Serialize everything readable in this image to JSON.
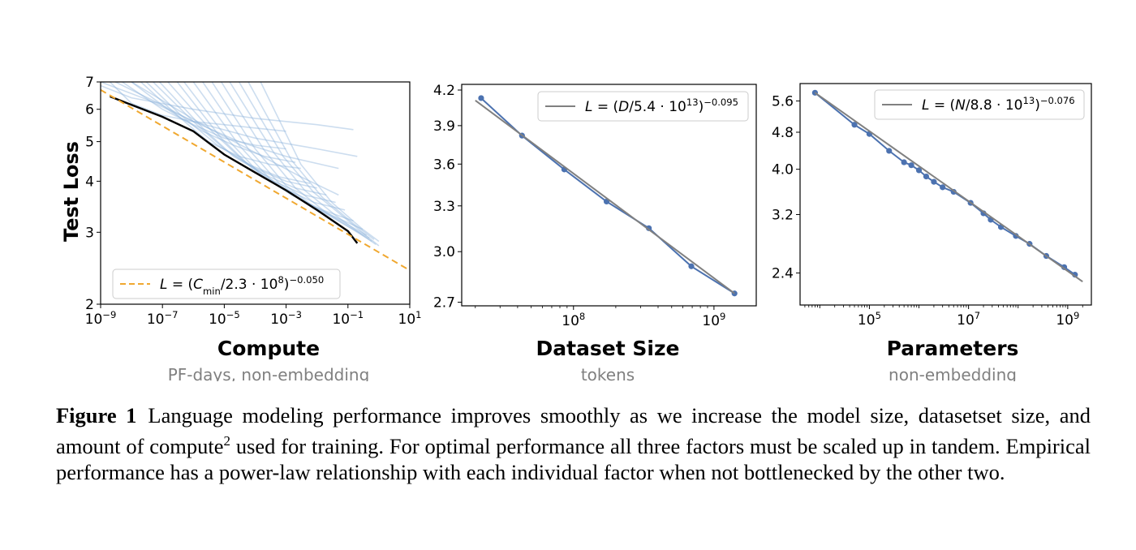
{
  "chart_data": [
    {
      "type": "line",
      "xscale": "log",
      "yscale": "log",
      "xlim": [
        1e-09,
        10
      ],
      "ylim": [
        2,
        7
      ],
      "xlabel": "Compute",
      "xlabel_sub": "PF-days, non-embedding",
      "ylabel": "Test Loss",
      "x_ticks": [
        1e-09,
        1e-07,
        1e-05,
        0.001,
        0.1,
        10
      ],
      "x_tick_labels": [
        [
          "10",
          "−9"
        ],
        [
          "10",
          "−7"
        ],
        [
          "10",
          "−5"
        ],
        [
          "10",
          "−3"
        ],
        [
          "10",
          "−1"
        ],
        [
          "10",
          "1"
        ]
      ],
      "y_ticks": [
        2,
        3,
        4,
        5,
        6,
        7
      ],
      "y_tick_labels": [
        "2",
        "3",
        "4",
        "5",
        "6",
        "7"
      ],
      "legend": {
        "position": "lower-left",
        "entries": [
          {
            "name_parts": [
              "L = (C",
              "min",
              "/2.3 · 10",
              "8",
              ")",
              "−0.050"
            ],
            "color": "#f0a830",
            "style": "dashed"
          }
        ]
      },
      "series": [
        {
          "name": "frontier",
          "color": "#000000",
          "x": [
            2e-09,
            1e-08,
            1e-07,
            1e-06,
            1e-05,
            0.0001,
            0.001,
            0.01,
            0.1,
            0.2
          ],
          "y": [
            6.45,
            6.15,
            5.75,
            5.3,
            4.65,
            4.2,
            3.8,
            3.4,
            3.02,
            2.82
          ]
        },
        {
          "name": "fit",
          "color": "#f0a830",
          "x": [
            5e-10,
            10
          ],
          "y": [
            6.9,
            2.42
          ]
        }
      ],
      "training_curves": {
        "color": "#8fb3dc",
        "curves": [
          {
            "x": [
              5e-10,
              1e-08,
              1e-06,
              0.0001,
              0.01,
              0.15
            ],
            "y": [
              7,
              6.4,
              6.0,
              5.7,
              5.5,
              5.35
            ]
          },
          {
            "x": [
              1e-09,
              3e-08,
              1e-06,
              0.0001,
              0.01,
              0.2
            ],
            "y": [
              7,
              6.35,
              5.6,
              5.1,
              4.8,
              4.6
            ]
          },
          {
            "x": [
              2e-09,
              1e-08,
              1e-07,
              1e-06,
              1e-05,
              0.0001,
              0.001
            ],
            "y": [
              7,
              6.2,
              5.8,
              5.6,
              5.5,
              5.4,
              5.3
            ]
          },
          {
            "x": [
              3e-09,
              5e-08,
              1e-06,
              3e-05,
              0.001,
              0.05
            ],
            "y": [
              7,
              6.3,
              5.6,
              5.0,
              4.6,
              4.3
            ]
          },
          {
            "x": [
              5e-09,
              1e-07,
              1e-06,
              1e-05,
              0.0001,
              0.001
            ],
            "y": [
              7,
              6.0,
              5.5,
              5.1,
              4.9,
              4.8
            ]
          },
          {
            "x": [
              1e-08,
              2e-07,
              2e-06,
              2e-05,
              0.0002,
              0.002
            ],
            "y": [
              7,
              5.9,
              5.3,
              4.9,
              4.6,
              4.45
            ]
          },
          {
            "x": [
              1e-08,
              1e-07,
              3e-06,
              0.0001,
              0.003,
              0.05
            ],
            "y": [
              7,
              6.3,
              5.4,
              4.7,
              4.1,
              3.7
            ]
          },
          {
            "x": [
              2e-08,
              3e-07,
              3e-06,
              3e-05,
              0.0003,
              0.003
            ],
            "y": [
              7,
              5.8,
              5.0,
              4.6,
              4.4,
              4.3
            ]
          },
          {
            "x": [
              3e-08,
              4e-07,
              6e-06,
              6e-05,
              0.0006,
              0.006
            ],
            "y": [
              7,
              5.8,
              4.9,
              4.4,
              4.1,
              3.95
            ]
          },
          {
            "x": [
              5e-08,
              1e-06,
              1e-05,
              0.0001,
              0.001,
              0.01
            ],
            "y": [
              7,
              5.6,
              4.8,
              4.3,
              4.0,
              3.85
            ]
          },
          {
            "x": [
              8e-08,
              2e-06,
              2e-05,
              0.0002,
              0.002,
              0.02
            ],
            "y": [
              7,
              5.4,
              4.6,
              4.15,
              3.85,
              3.7
            ]
          },
          {
            "x": [
              1.5e-07,
              4e-06,
              4e-05,
              0.0004,
              0.004,
              0.04
            ],
            "y": [
              7,
              5.3,
              4.5,
              4.0,
              3.7,
              3.55
            ]
          },
          {
            "x": [
              3e-07,
              8e-06,
              8e-05,
              0.0008,
              0.008,
              0.08
            ],
            "y": [
              7,
              5.1,
              4.3,
              3.85,
              3.55,
              3.4
            ]
          },
          {
            "x": [
              5e-07,
              1.5e-05,
              0.00015,
              0.0015,
              0.015,
              0.15
            ],
            "y": [
              7,
              5.0,
              4.15,
              3.7,
              3.4,
              3.2
            ]
          },
          {
            "x": [
              1e-06,
              3e-05,
              0.0003,
              0.003,
              0.03,
              0.3
            ],
            "y": [
              7,
              4.9,
              4.05,
              3.6,
              3.3,
              3.05
            ]
          },
          {
            "x": [
              2e-06,
              6e-05,
              0.0006,
              0.006,
              0.06,
              0.4
            ],
            "y": [
              7,
              4.8,
              3.95,
              3.5,
              3.2,
              2.95
            ]
          },
          {
            "x": [
              4e-06,
              0.0001,
              0.001,
              0.01,
              0.1,
              0.5
            ],
            "y": [
              7,
              4.8,
              3.9,
              3.42,
              3.1,
              2.9
            ]
          },
          {
            "x": [
              8e-06,
              0.0002,
              0.002,
              0.02,
              0.2,
              0.6
            ],
            "y": [
              7,
              4.75,
              3.85,
              3.35,
              3.0,
              2.85
            ]
          },
          {
            "x": [
              1.5e-05,
              0.0004,
              0.004,
              0.04,
              0.3,
              0.8
            ],
            "y": [
              7,
              4.7,
              3.8,
              3.3,
              2.95,
              2.8
            ]
          },
          {
            "x": [
              3e-05,
              0.0008,
              0.008,
              0.08,
              0.5,
              1.0
            ],
            "y": [
              7,
              4.6,
              3.75,
              3.25,
              2.9,
              2.78
            ]
          },
          {
            "x": [
              6e-05,
              0.0015,
              0.015,
              0.15,
              0.7
            ],
            "y": [
              7,
              4.5,
              3.65,
              3.15,
              2.88
            ]
          },
          {
            "x": [
              0.00015,
              0.003,
              0.03,
              0.3,
              1.0
            ],
            "y": [
              7,
              4.4,
              3.55,
              3.05,
              2.85
            ]
          }
        ]
      }
    },
    {
      "type": "line",
      "xscale": "log",
      "yscale": "log",
      "xlim": [
        16000000.0,
        2000000000.0
      ],
      "ylim": [
        2.68,
        4.25
      ],
      "xlabel": "Dataset Size",
      "xlabel_sub": "tokens",
      "y_ticks": [
        2.7,
        3.0,
        3.3,
        3.6,
        3.9,
        4.2
      ],
      "y_tick_labels": [
        "2.7",
        "3.0",
        "3.3",
        "3.6",
        "3.9",
        "4.2"
      ],
      "x_ticks": [
        100000000.0,
        1000000000.0
      ],
      "x_tick_labels": [
        [
          "10",
          "8"
        ],
        [
          "10",
          "9"
        ]
      ],
      "legend": {
        "position": "upper-right",
        "entries": [
          {
            "name_parts": [
              "L = (D/5.4 · 10",
              "13",
              ")",
              "−0.095"
            ],
            "color": "#808080",
            "style": "solid"
          }
        ]
      },
      "series": [
        {
          "name": "data",
          "color": "#4c72b0",
          "x": [
            22000000.0,
            43000000.0,
            86000000.0,
            172000000.0,
            344000000.0,
            690000000.0,
            1400000000.0
          ],
          "y": [
            4.13,
            3.82,
            3.56,
            3.33,
            3.15,
            2.91,
            2.75
          ]
        },
        {
          "name": "fit",
          "color": "#808080",
          "x": [
            20000000.0,
            1400000000.0
          ],
          "y": [
            4.11,
            2.75
          ]
        }
      ]
    },
    {
      "type": "line",
      "xscale": "log",
      "yscale": "log",
      "xlim": [
        4000.0,
        3000000000.0
      ],
      "ylim": [
        2.05,
        6.1
      ],
      "xlabel": "Parameters",
      "xlabel_sub": "non-embedding",
      "y_ticks": [
        2.4,
        3.2,
        4.0,
        4.8,
        5.6
      ],
      "y_tick_labels": [
        "2.4",
        "3.2",
        "4.0",
        "4.8",
        "5.6"
      ],
      "x_ticks": [
        100000.0,
        10000000.0,
        1000000000.0
      ],
      "x_tick_labels": [
        [
          "10",
          "5"
        ],
        [
          "10",
          "7"
        ],
        [
          "10",
          "9"
        ]
      ],
      "legend": {
        "position": "upper-right",
        "entries": [
          {
            "name_parts": [
              "L = (N/8.8 · 10",
              "13",
              ")",
              "−0.076"
            ],
            "color": "#808080",
            "style": "solid"
          }
        ]
      },
      "series": [
        {
          "name": "data",
          "color": "#4c72b0",
          "x": [
            8000.0,
            50000.0,
            100000.0,
            250000.0,
            500000.0,
            700000.0,
            1000000.0,
            1400000.0,
            2000000.0,
            3000000.0,
            5000000.0,
            11000000.0,
            20000000.0,
            28000000.0,
            45000000.0,
            90000000.0,
            170000000.0,
            370000000.0,
            850000000.0,
            1400000000.0
          ],
          "y": [
            5.83,
            4.98,
            4.76,
            4.38,
            4.14,
            4.08,
            3.98,
            3.86,
            3.76,
            3.66,
            3.58,
            3.39,
            3.22,
            3.12,
            3.01,
            2.88,
            2.77,
            2.61,
            2.47,
            2.38
          ]
        },
        {
          "name": "fit",
          "color": "#808080",
          "x": [
            8000.0,
            2000000000.0
          ],
          "y": [
            5.83,
            2.3
          ]
        }
      ]
    }
  ],
  "caption": {
    "label": "Figure 1",
    "parts": [
      "Language modeling performance improves smoothly as we increase the model size, datasetset size, and amount of compute",
      "2",
      " used for training. For optimal performance all three factors must be scaled up in tandem. Empirical performance has a power-law relationship with each individual factor when not bottlenecked by the other two."
    ]
  }
}
